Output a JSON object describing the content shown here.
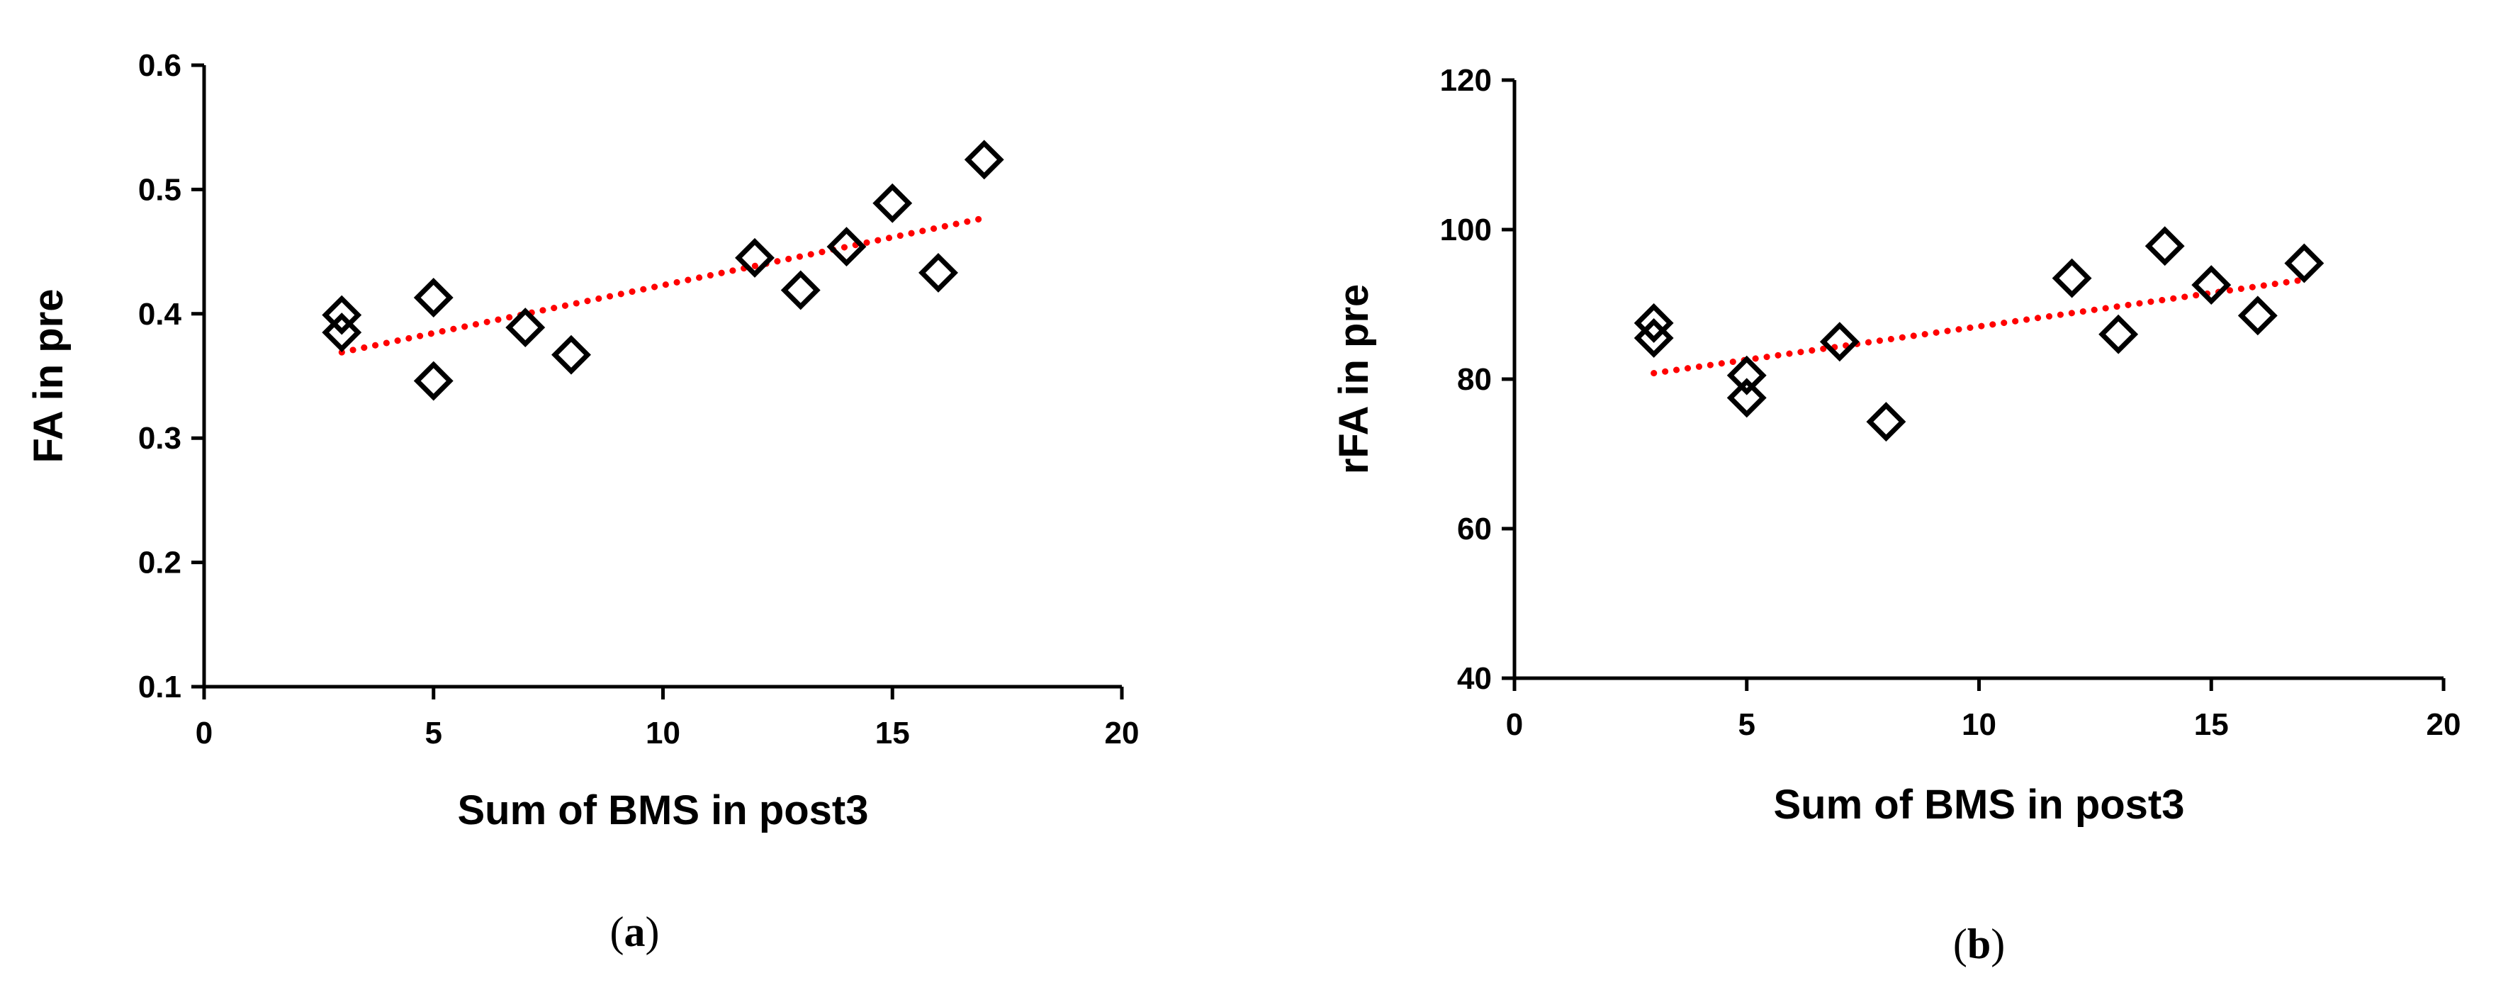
{
  "chart_data": [
    {
      "type": "scatter",
      "panel_label_parts": [
        "(",
        "a",
        ")"
      ],
      "xlabel": "Sum of BMS in post3",
      "ylabel": "FA in pre",
      "xlim": [
        0,
        20
      ],
      "ylim": [
        0.1,
        0.6
      ],
      "xticks": [
        "0",
        "5",
        "10",
        "15",
        "20"
      ],
      "yticks": [
        "0.1",
        "0.2",
        "0.3",
        "0.4",
        "0.5",
        "0.6"
      ],
      "grid": false,
      "marker": "diamond",
      "marker_color": "#000000",
      "trendline": {
        "style": "dotted",
        "color": "#ff0000",
        "x": [
          3,
          17
        ],
        "y": [
          0.369,
          0.477
        ]
      },
      "series": [
        {
          "x": [
            3,
            3,
            5,
            5,
            7,
            8,
            12,
            13,
            14,
            15,
            16,
            17
          ],
          "y": [
            0.399,
            0.385,
            0.413,
            0.346,
            0.389,
            0.367,
            0.445,
            0.419,
            0.454,
            0.489,
            0.433,
            0.524
          ]
        }
      ]
    },
    {
      "type": "scatter",
      "panel_label_parts": [
        "(",
        "b",
        ")"
      ],
      "xlabel": "Sum of BMS in post3",
      "ylabel": "rFA in pre",
      "xlim": [
        0,
        20
      ],
      "ylim": [
        40,
        120
      ],
      "xticks": [
        "0",
        "5",
        "10",
        "15",
        "20"
      ],
      "yticks": [
        "40",
        "60",
        "80",
        "100",
        "120"
      ],
      "grid": false,
      "marker": "diamond",
      "marker_color": "#000000",
      "trendline": {
        "style": "dotted",
        "color": "#ff0000",
        "x": [
          3,
          17
        ],
        "y": [
          80.8,
          93.3
        ]
      },
      "series": [
        {
          "x": [
            3,
            3,
            5,
            5,
            7,
            8,
            12,
            13,
            14,
            15,
            16,
            17
          ],
          "y": [
            87.5,
            85.5,
            80.5,
            77.5,
            85.0,
            74.3,
            93.5,
            86.0,
            97.8,
            92.6,
            88.5,
            95.5
          ]
        }
      ]
    }
  ]
}
